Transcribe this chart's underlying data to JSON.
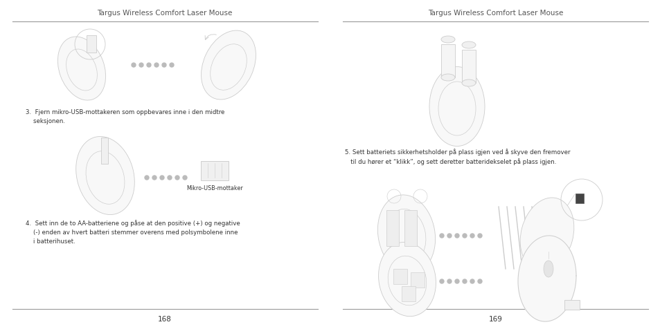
{
  "fig_width": 9.54,
  "fig_height": 4.77,
  "dpi": 100,
  "bg_color": "#ffffff",
  "title_left": "Targus Wireless Comfort Laser Mouse",
  "title_right": "Targus Wireless Comfort Laser Mouse",
  "title_fontsize": 7.5,
  "page_left": "168",
  "page_right": "169",
  "page_fontsize": 7.5,
  "step3_text": "3.  Fjern mikro-USB-mottakeren som oppbevares inne i den midtre\n    seksjonen.",
  "step4_text": "4.  Sett inn de to AA-batteriene og påse at den positive (+) og negative\n    (-) enden av hvert batteri stemmer overens med polsymbolene inne\n    i batterihuset.",
  "step5_text": "5. Sett batteriets sikkerhetsholder på plass igjen ved å skyve den fremover\n   til du hører et “klikk”, og sett deretter batteridekselet på plass igjen.",
  "caption_usb": "Mikro-USB-mottaker",
  "text_fontsize": 6.2,
  "caption_fontsize": 5.8,
  "title_color": "#555555",
  "text_color": "#333333",
  "line_color": "#888888",
  "dot_color": "#bbbbbb",
  "illus_color": "#cccccc",
  "illus_lw": 0.6
}
